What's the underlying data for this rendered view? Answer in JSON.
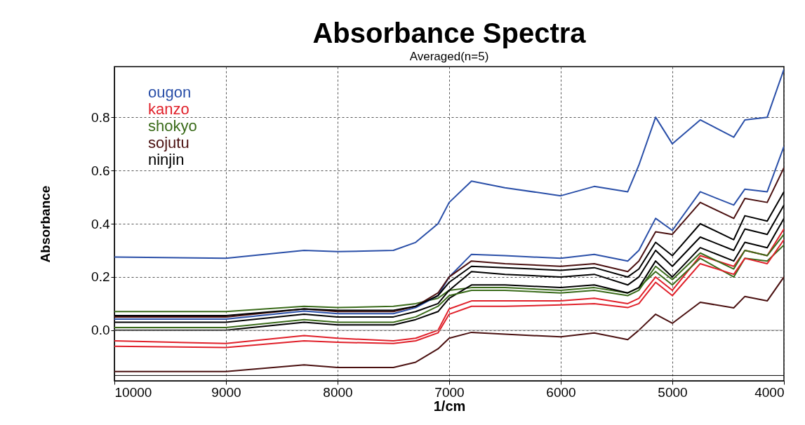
{
  "chart_data": {
    "type": "line",
    "title": "Absorbance Spectra",
    "subtitle": "Averaged(n=5)",
    "xlabel": "1/cm",
    "ylabel": "Absorbance",
    "x": [
      10000,
      9000,
      8300,
      8000,
      7500,
      7300,
      7100,
      7000,
      6800,
      6500,
      6000,
      5700,
      5400,
      5300,
      5150,
      5000,
      4750,
      4450,
      4350,
      4150,
      4000
    ],
    "xlim": [
      10000,
      4000
    ],
    "xticks": [
      10000,
      9000,
      8000,
      7000,
      6000,
      5000,
      4000
    ],
    "ylim": [
      -0.19,
      0.99
    ],
    "yticks": [
      {
        "value": 0,
        "label": "0.0"
      },
      {
        "value": 0.2,
        "label": "0.2"
      },
      {
        "value": 0.4,
        "label": "0.4"
      },
      {
        "value": 0.6,
        "label": "0.6"
      },
      {
        "value": 0.8,
        "label": "0.8"
      }
    ],
    "grid": true,
    "legend": "top left",
    "series": [
      {
        "name": "ougon",
        "color": "#2a4fa8",
        "values": [
          0.275,
          0.27,
          0.3,
          0.295,
          0.3,
          0.33,
          0.4,
          0.48,
          0.56,
          0.535,
          0.505,
          0.54,
          0.52,
          0.62,
          0.8,
          0.7,
          0.79,
          0.725,
          0.79,
          0.8,
          0.98
        ]
      },
      {
        "name": "kanzo",
        "color": "#e0202a",
        "values": [
          -0.04,
          -0.05,
          -0.02,
          -0.03,
          -0.04,
          -0.03,
          0.0,
          0.08,
          0.11,
          0.11,
          0.11,
          0.12,
          0.1,
          0.12,
          0.2,
          0.15,
          0.28,
          0.24,
          0.3,
          0.28,
          0.38
        ]
      },
      {
        "name": "shokyo",
        "color": "#3a6b1a",
        "values": [
          0.07,
          0.07,
          0.09,
          0.085,
          0.09,
          0.1,
          0.12,
          0.15,
          0.16,
          0.16,
          0.15,
          0.16,
          0.14,
          0.16,
          0.22,
          0.17,
          0.27,
          0.2,
          0.27,
          0.26,
          0.32
        ]
      },
      {
        "name": "sojutu",
        "color": "#4a1010",
        "values": [
          -0.155,
          -0.155,
          -0.13,
          -0.14,
          -0.14,
          -0.12,
          -0.07,
          -0.03,
          -0.008,
          -0.015,
          -0.025,
          -0.01,
          -0.035,
          0.0,
          0.06,
          0.026,
          0.105,
          0.084,
          0.127,
          0.11,
          0.2
        ]
      },
      {
        "name": "ninjin",
        "color": "#000000",
        "values": [
          0.03,
          0.03,
          0.06,
          0.05,
          0.05,
          0.07,
          0.1,
          0.15,
          0.22,
          0.21,
          0.2,
          0.21,
          0.17,
          0.2,
          0.3,
          0.24,
          0.35,
          0.3,
          0.38,
          0.36,
          0.47
        ]
      },
      {
        "color": "#2a4fa8",
        "values": [
          0.042,
          0.042,
          0.072,
          0.062,
          0.062,
          0.085,
          0.13,
          0.2,
          0.285,
          0.28,
          0.27,
          0.285,
          0.26,
          0.3,
          0.42,
          0.375,
          0.52,
          0.47,
          0.53,
          0.52,
          0.69
        ]
      },
      {
        "color": "#4a1010",
        "values": [
          0.05,
          0.05,
          0.08,
          0.07,
          0.07,
          0.09,
          0.14,
          0.2,
          0.26,
          0.25,
          0.24,
          0.25,
          0.22,
          0.26,
          0.37,
          0.36,
          0.48,
          0.42,
          0.495,
          0.48,
          0.61
        ]
      },
      {
        "color": "#000000",
        "values": [
          0.0,
          0.0,
          0.03,
          0.02,
          0.02,
          0.04,
          0.07,
          0.12,
          0.17,
          0.17,
          0.16,
          0.17,
          0.14,
          0.16,
          0.26,
          0.2,
          0.31,
          0.26,
          0.33,
          0.31,
          0.42
        ]
      },
      {
        "color": "#000000",
        "values": [
          0.055,
          0.055,
          0.08,
          0.075,
          0.075,
          0.09,
          0.13,
          0.18,
          0.24,
          0.235,
          0.225,
          0.235,
          0.2,
          0.23,
          0.33,
          0.28,
          0.4,
          0.34,
          0.43,
          0.41,
          0.52
        ]
      },
      {
        "color": "#e0202a",
        "values": [
          -0.06,
          -0.065,
          -0.04,
          -0.045,
          -0.05,
          -0.04,
          -0.01,
          0.06,
          0.09,
          0.09,
          0.095,
          0.1,
          0.085,
          0.1,
          0.18,
          0.13,
          0.25,
          0.21,
          0.27,
          0.25,
          0.34
        ]
      },
      {
        "color": "#3a6b1a",
        "values": [
          0.01,
          0.01,
          0.04,
          0.03,
          0.03,
          0.05,
          0.09,
          0.13,
          0.15,
          0.15,
          0.14,
          0.15,
          0.13,
          0.15,
          0.24,
          0.19,
          0.29,
          0.23,
          0.3,
          0.28,
          0.36
        ]
      }
    ],
    "ref_lines": [
      {
        "axis": "y",
        "value": 0,
        "color": "#999999"
      },
      {
        "axis": "y",
        "value": -0.17,
        "color": "#000000"
      }
    ]
  }
}
